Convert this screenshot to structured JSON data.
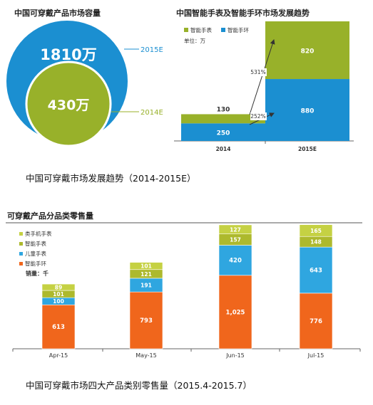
{
  "captions": {
    "top": "中国可穿戴市场发展趋势（2014-2015E）",
    "bottom": "中国可穿戴市场四大产品类别零售量（2015.4-2015.7）"
  },
  "colors": {
    "blue": "#1b8fd1",
    "green": "#98b12a",
    "orange": "#f0661c",
    "cyan": "#2fa6e0",
    "olive": "#adb92d",
    "lightgreen": "#c5d143",
    "axis": "#666666",
    "label_gray": "#5b8db8"
  },
  "chart_data": [
    {
      "type": "bubble",
      "title": "中国可穿戴产品市场容量",
      "items": [
        {
          "value_label": "1810万",
          "value": 1810,
          "year": "2015E",
          "color": "#1b8fd1"
        },
        {
          "value_label": "430万",
          "value": 430,
          "year": "2014E",
          "color": "#98b12a"
        }
      ]
    },
    {
      "type": "bar",
      "stacked": true,
      "title": "中国智能手表及智能手环市场发展趋势",
      "unit_label": "单位：万",
      "categories": [
        "2014",
        "2015E"
      ],
      "series": [
        {
          "name": "智能手环",
          "color": "#1b8fd1",
          "values": [
            250,
            880
          ]
        },
        {
          "name": "智能手表",
          "color": "#98b12a",
          "values": [
            130,
            820
          ]
        }
      ],
      "growth": [
        {
          "label": "531%"
        },
        {
          "label": "252%"
        }
      ],
      "ylim": [
        0,
        1700
      ]
    },
    {
      "type": "bar",
      "stacked": true,
      "title": "可穿戴产品分品类零售量",
      "unit_label": "销量：千",
      "categories": [
        "Apr-15",
        "May-15",
        "Jun-15",
        "Jul-15"
      ],
      "legend": [
        "类手机手表",
        "智能手表",
        "儿童手表",
        "智能手环"
      ],
      "series": [
        {
          "name": "智能手环",
          "color": "#f0661c",
          "values": [
            613,
            793,
            1025,
            776
          ],
          "labels": [
            "613",
            "793",
            "1,025",
            "776"
          ]
        },
        {
          "name": "儿童手表",
          "color": "#2fa6e0",
          "values": [
            100,
            191,
            420,
            643
          ],
          "labels": [
            "100",
            "191",
            "420",
            "643"
          ]
        },
        {
          "name": "智能手表",
          "color": "#adb92d",
          "values": [
            101,
            121,
            157,
            148
          ],
          "labels": [
            "101",
            "121",
            "157",
            "148"
          ]
        },
        {
          "name": "类手机手表",
          "color": "#c5d143",
          "values": [
            89,
            101,
            127,
            165
          ],
          "labels": [
            "89",
            "101",
            "127",
            "165"
          ]
        }
      ],
      "ylim": [
        0,
        1800
      ]
    }
  ]
}
